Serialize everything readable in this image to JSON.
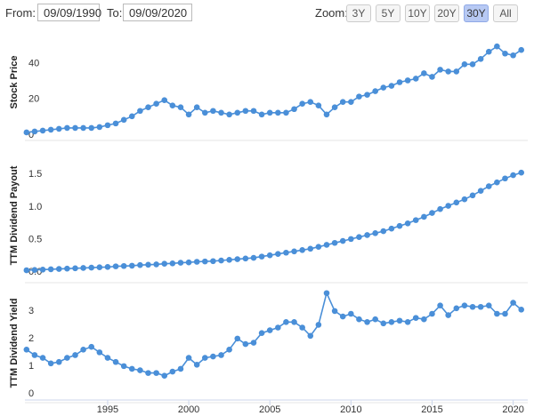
{
  "controls": {
    "from_label": "From:",
    "from_value": "09/09/1990",
    "to_label": "To:",
    "to_value": "09/09/2020",
    "zoom_label": "Zoom:",
    "zoom_buttons": [
      "3Y",
      "5Y",
      "10Y",
      "20Y",
      "30Y",
      "All"
    ],
    "active_zoom_index": 4
  },
  "chart_data": [
    {
      "type": "line",
      "ylabel": "Stock Price",
      "color": "#4a8fd8",
      "grid": false,
      "xlim": [
        1989.9,
        2020.9
      ],
      "ylim": [
        0,
        62
      ],
      "yticks": [
        0,
        20,
        40
      ],
      "x": [
        1990,
        1990.5,
        1991,
        1991.5,
        1992,
        1992.5,
        1993,
        1993.5,
        1994,
        1994.5,
        1995,
        1995.5,
        1996,
        1996.5,
        1997,
        1997.5,
        1998,
        1998.5,
        1999,
        1999.5,
        2000,
        2000.5,
        2001,
        2001.5,
        2002,
        2002.5,
        2003,
        2003.5,
        2004,
        2004.5,
        2005,
        2005.5,
        2006,
        2006.5,
        2007,
        2007.5,
        2008,
        2008.5,
        2009,
        2009.5,
        2010,
        2010.5,
        2011,
        2011.5,
        2012,
        2012.5,
        2013,
        2013.5,
        2014,
        2014.5,
        2015,
        2015.5,
        2016,
        2016.5,
        2017,
        2017.5,
        2018,
        2018.5,
        2019,
        2019.5,
        2020,
        2020.5
      ],
      "values": [
        3,
        3.5,
        4,
        4.5,
        5,
        5.5,
        5.5,
        5.5,
        5.5,
        6,
        7,
        8,
        10,
        12,
        15,
        17,
        19,
        21,
        18,
        17,
        13,
        17,
        14,
        15,
        14,
        13,
        14,
        15,
        15,
        13,
        14,
        14,
        14,
        16,
        19,
        20,
        18,
        13,
        17,
        20,
        20,
        23,
        24,
        26,
        28,
        29,
        31,
        32,
        33,
        36,
        34,
        38,
        37,
        37,
        41,
        41,
        44,
        48,
        51,
        47,
        46,
        49
      ]
    },
    {
      "type": "line",
      "ylabel": "TTM Dividend Payout",
      "color": "#4a8fd8",
      "grid": false,
      "xlim": [
        1989.9,
        2020.9
      ],
      "ylim": [
        -0.08,
        1.9
      ],
      "yticks": [
        {
          "value": 0,
          "label": "0.0"
        },
        0.5,
        {
          "value": 1,
          "label": "1.0"
        },
        1.5
      ],
      "x": [
        1990,
        1990.5,
        1991,
        1991.5,
        1992,
        1992.5,
        1993,
        1993.5,
        1994,
        1994.5,
        1995,
        1995.5,
        1996,
        1996.5,
        1997,
        1997.5,
        1998,
        1998.5,
        1999,
        1999.5,
        2000,
        2000.5,
        2001,
        2001.5,
        2002,
        2002.5,
        2003,
        2003.5,
        2004,
        2004.5,
        2005,
        2005.5,
        2006,
        2006.5,
        2007,
        2007.5,
        2008,
        2008.5,
        2009,
        2009.5,
        2010,
        2010.5,
        2011,
        2011.5,
        2012,
        2012.5,
        2013,
        2013.5,
        2014,
        2014.5,
        2015,
        2015.5,
        2016,
        2016.5,
        2017,
        2017.5,
        2018,
        2018.5,
        2019,
        2019.5,
        2020,
        2020.5
      ],
      "values": [
        0.07,
        0.075,
        0.08,
        0.085,
        0.09,
        0.095,
        0.1,
        0.105,
        0.11,
        0.115,
        0.12,
        0.13,
        0.135,
        0.14,
        0.15,
        0.155,
        0.16,
        0.17,
        0.175,
        0.185,
        0.19,
        0.2,
        0.205,
        0.21,
        0.22,
        0.23,
        0.24,
        0.25,
        0.26,
        0.28,
        0.3,
        0.32,
        0.34,
        0.36,
        0.38,
        0.4,
        0.43,
        0.46,
        0.49,
        0.52,
        0.55,
        0.58,
        0.61,
        0.64,
        0.67,
        0.71,
        0.75,
        0.79,
        0.84,
        0.89,
        0.95,
        1.01,
        1.06,
        1.11,
        1.16,
        1.22,
        1.29,
        1.36,
        1.42,
        1.48,
        1.53,
        1.57
      ]
    },
    {
      "type": "line",
      "ylabel": "TTM Dividend Yield",
      "color": "#4a8fd8",
      "grid": false,
      "xlim": [
        1989.9,
        2020.9
      ],
      "ylim": [
        -0.13,
        4.0
      ],
      "yticks": [
        0,
        1,
        2,
        3
      ],
      "xticks": [
        1995,
        2000,
        2005,
        2010,
        2015,
        2020
      ],
      "x": [
        1990,
        1990.5,
        1991,
        1991.5,
        1992,
        1992.5,
        1993,
        1993.5,
        1994,
        1994.5,
        1995,
        1995.5,
        1996,
        1996.5,
        1997,
        1997.5,
        1998,
        1998.5,
        1999,
        1999.5,
        2000,
        2000.5,
        2001,
        2001.5,
        2002,
        2002.5,
        2003,
        2003.5,
        2004,
        2004.5,
        2005,
        2005.5,
        2006,
        2006.5,
        2007,
        2007.5,
        2008,
        2008.5,
        2009,
        2009.5,
        2010,
        2010.5,
        2011,
        2011.5,
        2012,
        2012.5,
        2013,
        2013.5,
        2014,
        2014.5,
        2015,
        2015.5,
        2016,
        2016.5,
        2017,
        2017.5,
        2018,
        2018.5,
        2019,
        2019.5,
        2020,
        2020.5
      ],
      "values": [
        1.7,
        1.5,
        1.4,
        1.2,
        1.25,
        1.4,
        1.5,
        1.7,
        1.8,
        1.6,
        1.4,
        1.25,
        1.1,
        1.0,
        0.95,
        0.85,
        0.85,
        0.75,
        0.9,
        1.0,
        1.4,
        1.15,
        1.4,
        1.45,
        1.5,
        1.7,
        2.1,
        1.9,
        1.95,
        2.3,
        2.4,
        2.5,
        2.7,
        2.7,
        2.5,
        2.2,
        2.6,
        3.75,
        3.1,
        2.9,
        3.0,
        2.8,
        2.7,
        2.8,
        2.65,
        2.7,
        2.75,
        2.7,
        2.85,
        2.8,
        3.0,
        3.3,
        2.95,
        3.2,
        3.3,
        3.25,
        3.25,
        3.3,
        3.0,
        3.0,
        3.4,
        3.15
      ]
    }
  ]
}
